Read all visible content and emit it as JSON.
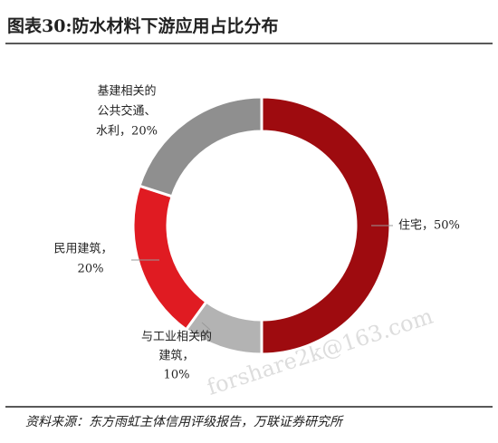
{
  "chart_data": {
    "type": "donut",
    "title": "图表30:防水材料下游应用占比分布",
    "values": [
      50,
      10,
      20,
      20
    ],
    "value_labels": [
      [
        "住宅，50%"
      ],
      [
        "与工业相关的",
        "建筑，",
        "10%"
      ],
      [
        "民用建筑，",
        "20%"
      ],
      [
        "基建相关的",
        "公共交通、",
        "水利，20%"
      ]
    ],
    "colors": [
      "#9e0b0f",
      "#b3b3b3",
      "#e01b22",
      "#8f8f8f"
    ],
    "source": "资料来源：东方雨虹主体信用评级报告，万联证券研究所",
    "watermark": "forshare2k@163.com"
  }
}
